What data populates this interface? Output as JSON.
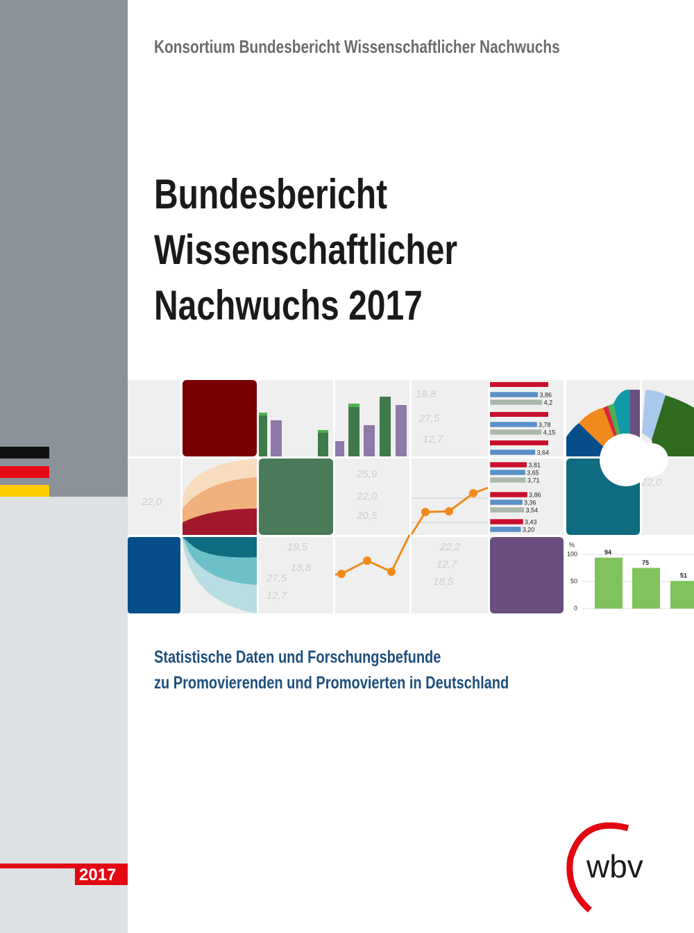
{
  "header": {
    "consortium": "Konsortium Bundesbericht Wissenschaftlicher Nachwuchs"
  },
  "title": {
    "lines": [
      "Bundesbericht",
      "Wissenschaftlicher",
      "Nachwuchs 2017"
    ]
  },
  "subtitle": {
    "lines": [
      "Statistische Daten und Forschungsbefunde",
      "zu Promovierenden und Promovierten in Deutschland"
    ]
  },
  "year_badge": "2017",
  "publisher": "wbv",
  "collage": {
    "hbars_top": {
      "values": [
        3.86,
        4.2,
        3.78,
        4.15,
        3.64
      ],
      "value_labels": [
        "3,86",
        "4,2",
        "3,78",
        "4,15",
        "3,64"
      ]
    },
    "hbars_mid": {
      "values": [
        3.81,
        3.65,
        3.71,
        3.86,
        3.36,
        3.54,
        3.43,
        3.2
      ],
      "value_labels": [
        "3,81",
        "3,65",
        "3,71",
        "3,86",
        "3,36",
        "3,54",
        "3,43",
        "3,20"
      ]
    },
    "mini_chart": {
      "unit": "%",
      "yticks": [
        0,
        50,
        100
      ],
      "values": [
        94,
        75,
        51
      ]
    },
    "background_numbers": [
      "18,8",
      "27,5",
      "12,7",
      "25,9",
      "22,0",
      "20,5",
      "22,0",
      "19,5",
      "18,8",
      "27,5",
      "12,7",
      "22,2",
      "12,7",
      "18,5",
      "22,0"
    ]
  }
}
